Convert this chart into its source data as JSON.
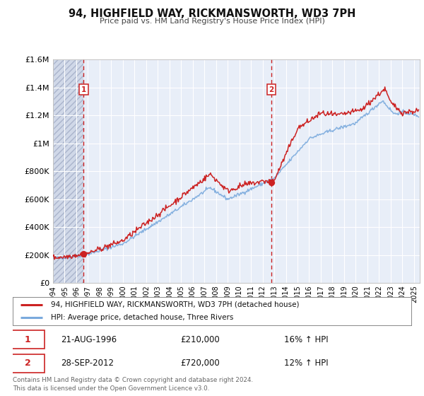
{
  "title": "94, HIGHFIELD WAY, RICKMANSWORTH, WD3 7PH",
  "subtitle": "Price paid vs. HM Land Registry's House Price Index (HPI)",
  "ylim": [
    0,
    1600000
  ],
  "xlim_start": 1994.0,
  "xlim_end": 2025.5,
  "yticks": [
    0,
    200000,
    400000,
    600000,
    800000,
    1000000,
    1200000,
    1400000,
    1600000
  ],
  "ytick_labels": [
    "£0",
    "£200K",
    "£400K",
    "£600K",
    "£800K",
    "£1M",
    "£1.2M",
    "£1.4M",
    "£1.6M"
  ],
  "hpi_color": "#7aaadd",
  "price_color": "#cc2222",
  "sale1_date": 1996.64,
  "sale1_price": 210000,
  "sale2_date": 2012.748,
  "sale2_price": 720000,
  "sale1_display_date": "21-AUG-1996",
  "sale1_display_price": "£210,000",
  "sale1_hpi_pct": "16% ↑ HPI",
  "sale2_display_date": "28-SEP-2012",
  "sale2_display_price": "£720,000",
  "sale2_hpi_pct": "12% ↑ HPI",
  "legend_line1": "94, HIGHFIELD WAY, RICKMANSWORTH, WD3 7PH (detached house)",
  "legend_line2": "HPI: Average price, detached house, Three Rivers",
  "footer": "Contains HM Land Registry data © Crown copyright and database right 2024.\nThis data is licensed under the Open Government Licence v3.0.",
  "plot_bg_color": "#e8eef8",
  "hatch_bg_color": "#d0d8e8"
}
